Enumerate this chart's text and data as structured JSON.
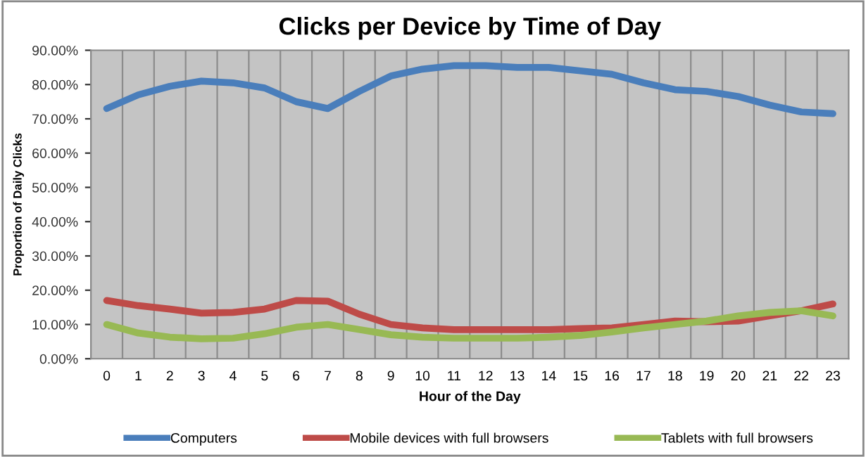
{
  "chart_data": {
    "type": "line",
    "title": "Clicks per Device by Time of Day",
    "xlabel": "Hour of the Day",
    "ylabel": "Proportion of Daily Clicks",
    "categories": [
      "0",
      "1",
      "2",
      "3",
      "4",
      "5",
      "6",
      "7",
      "8",
      "9",
      "10",
      "11",
      "12",
      "13",
      "14",
      "15",
      "16",
      "17",
      "18",
      "19",
      "20",
      "21",
      "22",
      "23"
    ],
    "series": [
      {
        "name": "Computers",
        "color": "#4a7ebb",
        "values": [
          73,
          77,
          79.5,
          81,
          80.5,
          79,
          75,
          73,
          78,
          82.5,
          84.5,
          85.5,
          85.5,
          85,
          85,
          84,
          83,
          80.5,
          78.5,
          78,
          76.5,
          74,
          72,
          71.5
        ]
      },
      {
        "name": "Mobile devices with full browsers",
        "color": "#be4b48",
        "values": [
          17,
          15.5,
          14.5,
          13.3,
          13.5,
          14.5,
          17,
          16.8,
          13,
          10,
          9,
          8.5,
          8.5,
          8.5,
          8.5,
          8.8,
          9,
          10,
          11,
          10.8,
          11,
          12.5,
          14,
          16
        ]
      },
      {
        "name": "Tablets with full browsers",
        "color": "#98b954",
        "values": [
          10,
          7.5,
          6.3,
          5.8,
          6,
          7.3,
          9.2,
          10,
          8.5,
          7,
          6.3,
          6,
          6,
          6,
          6.3,
          6.8,
          7.8,
          9,
          10,
          11,
          12.5,
          13.5,
          14,
          12.5
        ]
      }
    ],
    "ylim": [
      0,
      90
    ],
    "yticks": [
      {
        "value": 0,
        "label": "0.00%"
      },
      {
        "value": 10,
        "label": "10.00%"
      },
      {
        "value": 20,
        "label": "20.00%"
      },
      {
        "value": 30,
        "label": "30.00%"
      },
      {
        "value": 40,
        "label": "40.00%"
      },
      {
        "value": 50,
        "label": "50.00%"
      },
      {
        "value": 60,
        "label": "60.00%"
      },
      {
        "value": 70,
        "label": "70.00%"
      },
      {
        "value": 80,
        "label": "80.00%"
      },
      {
        "value": 90,
        "label": "90.00%"
      }
    ],
    "grid": "x",
    "legend": "bottom",
    "marker": "none",
    "line_style": "solid"
  }
}
